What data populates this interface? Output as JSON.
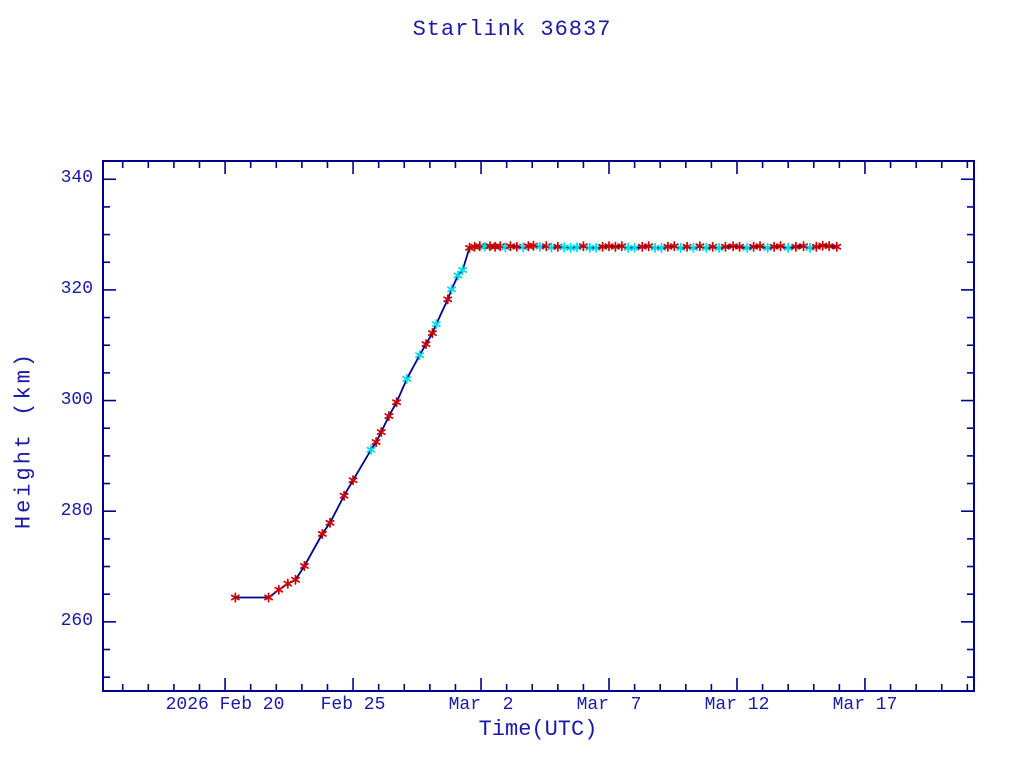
{
  "colors": {
    "text": "#1a1aa8",
    "axis": "#00008b",
    "line": "#00008b",
    "marker_red": "#cc0000",
    "marker_cyan": "#00d9e6"
  },
  "chart_data": {
    "type": "line",
    "title": "Starlink 36837",
    "xlabel": "Time(UTC)",
    "ylabel": "Height (km)",
    "x_axis_unit": "days relative to first labeled tick (2026 Feb 20, UTC)",
    "xlim": [
      -4.77,
      29.26
    ],
    "ylim": [
      247.5,
      343.3
    ],
    "grid": false,
    "legend": null,
    "x_major_ticks": [
      {
        "v": 0,
        "label": "2026 Feb 20"
      },
      {
        "v": 5,
        "label": "Feb 25"
      },
      {
        "v": 10,
        "label": "Mar  2"
      },
      {
        "v": 15,
        "label": "Mar  7"
      },
      {
        "v": 20,
        "label": "Mar 12"
      },
      {
        "v": 25,
        "label": "Mar 17"
      }
    ],
    "x_minor_step": 1,
    "y_major_ticks": [
      {
        "v": 260,
        "label": "260"
      },
      {
        "v": 280,
        "label": "280"
      },
      {
        "v": 300,
        "label": "300"
      },
      {
        "v": 320,
        "label": "320"
      },
      {
        "v": 340,
        "label": "340"
      }
    ],
    "y_minor_step": 5,
    "series": [
      {
        "name": "height-km",
        "marker": "asterisk",
        "marker_color_key": {
          "r": "red (tracked point)",
          "c": "cyan (tracked point)"
        },
        "points": [
          [
            0.4,
            264.4,
            "r"
          ],
          [
            1.7,
            264.4,
            "r"
          ],
          [
            2.1,
            265.8,
            "r"
          ],
          [
            2.45,
            266.9,
            "r"
          ],
          [
            2.75,
            267.6,
            "r"
          ],
          [
            3.1,
            270.1,
            "r"
          ],
          [
            3.8,
            275.9,
            "r"
          ],
          [
            4.1,
            277.9,
            "r"
          ],
          [
            4.65,
            282.8,
            "r"
          ],
          [
            5.0,
            285.6,
            "r"
          ],
          [
            5.7,
            291.1,
            "c"
          ],
          [
            5.9,
            292.5,
            "r"
          ],
          [
            6.1,
            294.3,
            "r"
          ],
          [
            6.4,
            297.2,
            "r"
          ],
          [
            6.7,
            299.7,
            "r"
          ],
          [
            7.1,
            303.9,
            "c"
          ],
          [
            7.6,
            308.2,
            "c"
          ],
          [
            7.85,
            310.2,
            "r"
          ],
          [
            8.1,
            312.2,
            "r"
          ],
          [
            8.25,
            313.8,
            "c"
          ],
          [
            8.7,
            318.3,
            "r"
          ],
          [
            8.85,
            320.1,
            "c"
          ],
          [
            9.1,
            322.6,
            "c"
          ],
          [
            9.28,
            323.6,
            "c"
          ],
          [
            9.55,
            327.6,
            "r"
          ],
          [
            9.75,
            327.8,
            "r"
          ],
          [
            9.95,
            327.9,
            "r"
          ],
          [
            10.15,
            327.8,
            "c"
          ],
          [
            10.35,
            327.9,
            "r"
          ],
          [
            10.55,
            327.8,
            "r"
          ],
          [
            10.75,
            327.9,
            "r"
          ],
          [
            10.95,
            327.7,
            "c"
          ],
          [
            11.15,
            327.9,
            "r"
          ],
          [
            11.4,
            327.8,
            "r"
          ],
          [
            11.65,
            327.7,
            "c"
          ],
          [
            11.85,
            327.9,
            "r"
          ],
          [
            12.05,
            328.0,
            "r"
          ],
          [
            12.3,
            327.8,
            "c"
          ],
          [
            12.55,
            327.9,
            "r"
          ],
          [
            12.75,
            327.7,
            "c"
          ],
          [
            13.0,
            327.8,
            "r"
          ],
          [
            13.25,
            327.7,
            "c"
          ],
          [
            13.5,
            327.6,
            "c"
          ],
          [
            13.75,
            327.7,
            "c"
          ],
          [
            14.0,
            327.9,
            "r"
          ],
          [
            14.25,
            327.6,
            "c"
          ],
          [
            14.5,
            327.6,
            "c"
          ],
          [
            14.75,
            327.8,
            "r"
          ],
          [
            15.0,
            327.9,
            "r"
          ],
          [
            15.25,
            327.8,
            "r"
          ],
          [
            15.5,
            327.9,
            "r"
          ],
          [
            15.75,
            327.6,
            "c"
          ],
          [
            16.0,
            327.6,
            "c"
          ],
          [
            16.3,
            327.8,
            "r"
          ],
          [
            16.55,
            327.9,
            "r"
          ],
          [
            16.8,
            327.6,
            "c"
          ],
          [
            17.05,
            327.6,
            "c"
          ],
          [
            17.3,
            327.8,
            "r"
          ],
          [
            17.55,
            327.9,
            "r"
          ],
          [
            17.8,
            327.6,
            "c"
          ],
          [
            18.05,
            327.8,
            "r"
          ],
          [
            18.3,
            327.6,
            "c"
          ],
          [
            18.55,
            327.9,
            "r"
          ],
          [
            18.8,
            327.6,
            "c"
          ],
          [
            19.05,
            327.8,
            "r"
          ],
          [
            19.3,
            327.6,
            "c"
          ],
          [
            19.55,
            327.8,
            "r"
          ],
          [
            19.85,
            327.9,
            "r"
          ],
          [
            20.1,
            327.8,
            "r"
          ],
          [
            20.4,
            327.6,
            "c"
          ],
          [
            20.65,
            327.8,
            "r"
          ],
          [
            20.9,
            327.9,
            "r"
          ],
          [
            21.2,
            327.6,
            "c"
          ],
          [
            21.45,
            327.8,
            "r"
          ],
          [
            21.7,
            327.9,
            "r"
          ],
          [
            22.0,
            327.6,
            "c"
          ],
          [
            22.3,
            327.8,
            "r"
          ],
          [
            22.6,
            327.9,
            "r"
          ],
          [
            22.85,
            327.6,
            "c"
          ],
          [
            23.1,
            327.8,
            "r"
          ],
          [
            23.35,
            328.0,
            "r"
          ],
          [
            23.6,
            327.9,
            "r"
          ],
          [
            23.9,
            327.8,
            "r"
          ]
        ]
      }
    ]
  }
}
